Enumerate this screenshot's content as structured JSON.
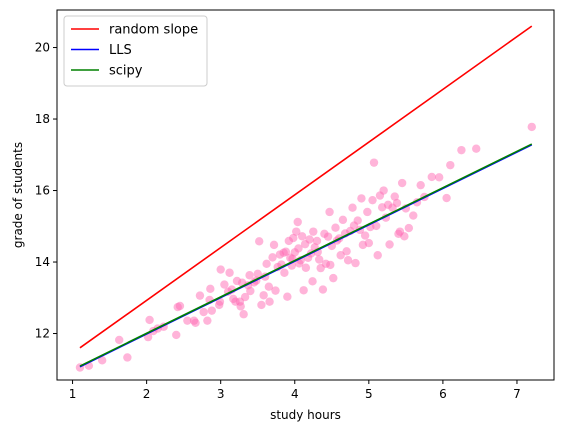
{
  "chart_data": {
    "type": "scatter",
    "title": "",
    "xlabel": "study hours",
    "ylabel": "grade of students",
    "xlim": [
      0.79,
      7.5
    ],
    "ylim": [
      10.7,
      21.05
    ],
    "xticks": [
      1,
      2,
      3,
      4,
      5,
      6,
      7
    ],
    "yticks": [
      12,
      14,
      16,
      18,
      20
    ],
    "grid": false,
    "legend_position": "upper left",
    "colors": {
      "scatter": "#ff69b4",
      "random_slope": "#ff0000",
      "lls": "#0000ff",
      "scipy": "#008000",
      "axes": "#000000",
      "legend_border": "#cccccc"
    },
    "lines": [
      {
        "name": "random slope",
        "color": "#ff0000",
        "x": [
          1.1,
          7.2
        ],
        "y": [
          11.6,
          20.6
        ]
      },
      {
        "name": "LLS",
        "color": "#0000ff",
        "x": [
          1.1,
          7.2
        ],
        "y": [
          11.07,
          17.28
        ]
      },
      {
        "name": "scipy",
        "color": "#008000",
        "x": [
          1.1,
          7.2
        ],
        "y": [
          11.09,
          17.3
        ]
      }
    ],
    "scatter_points": [
      [
        1.1,
        11.05
      ],
      [
        1.22,
        11.1
      ],
      [
        1.4,
        11.25
      ],
      [
        1.63,
        11.82
      ],
      [
        1.74,
        11.33
      ],
      [
        2.02,
        11.9
      ],
      [
        2.04,
        12.38
      ],
      [
        2.09,
        12.07
      ],
      [
        2.15,
        12.14
      ],
      [
        2.23,
        12.19
      ],
      [
        2.4,
        11.96
      ],
      [
        2.42,
        12.74
      ],
      [
        2.45,
        12.77
      ],
      [
        2.55,
        12.36
      ],
      [
        2.64,
        12.36
      ],
      [
        2.66,
        12.3
      ],
      [
        2.72,
        13.06
      ],
      [
        2.77,
        12.6
      ],
      [
        2.82,
        12.36
      ],
      [
        2.85,
        12.94
      ],
      [
        2.86,
        13.25
      ],
      [
        2.88,
        12.64
      ],
      [
        2.98,
        12.8
      ],
      [
        2.99,
        12.89
      ],
      [
        3.0,
        13.79
      ],
      [
        3.05,
        13.37
      ],
      [
        3.1,
        13.17
      ],
      [
        3.12,
        13.7
      ],
      [
        3.15,
        13.23
      ],
      [
        3.17,
        12.97
      ],
      [
        3.2,
        12.89
      ],
      [
        3.22,
        13.47
      ],
      [
        3.26,
        12.89
      ],
      [
        3.27,
        12.76
      ],
      [
        3.29,
        13.42
      ],
      [
        3.31,
        12.54
      ],
      [
        3.33,
        13.02
      ],
      [
        3.37,
        13.35
      ],
      [
        3.39,
        13.63
      ],
      [
        3.4,
        13.19
      ],
      [
        3.45,
        13.43
      ],
      [
        3.48,
        13.48
      ],
      [
        3.5,
        13.67
      ],
      [
        3.52,
        14.58
      ],
      [
        3.55,
        12.8
      ],
      [
        3.58,
        13.07
      ],
      [
        3.6,
        13.59
      ],
      [
        3.62,
        13.95
      ],
      [
        3.65,
        13.31
      ],
      [
        3.66,
        12.89
      ],
      [
        3.7,
        14.13
      ],
      [
        3.72,
        14.48
      ],
      [
        3.74,
        13.2
      ],
      [
        3.77,
        13.86
      ],
      [
        3.8,
        14.21
      ],
      [
        3.82,
        13.93
      ],
      [
        3.85,
        14.26
      ],
      [
        3.86,
        13.7
      ],
      [
        3.88,
        14.29
      ],
      [
        3.9,
        13.03
      ],
      [
        3.92,
        14.59
      ],
      [
        3.94,
        14.12
      ],
      [
        3.96,
        13.9
      ],
      [
        3.97,
        14.09
      ],
      [
        3.98,
        14.67
      ],
      [
        4.0,
        14.27
      ],
      [
        4.02,
        14.85
      ],
      [
        4.04,
        15.12
      ],
      [
        4.05,
        14.38
      ],
      [
        4.06,
        13.96
      ],
      [
        4.08,
        14.05
      ],
      [
        4.1,
        14.72
      ],
      [
        4.12,
        13.21
      ],
      [
        4.14,
        14.5
      ],
      [
        4.15,
        13.84
      ],
      [
        4.18,
        14.12
      ],
      [
        4.2,
        14.63
      ],
      [
        4.22,
        14.24
      ],
      [
        4.24,
        13.46
      ],
      [
        4.25,
        14.85
      ],
      [
        4.27,
        14.41
      ],
      [
        4.3,
        14.59
      ],
      [
        4.31,
        14.28
      ],
      [
        4.33,
        14.07
      ],
      [
        4.35,
        13.83
      ],
      [
        4.38,
        13.23
      ],
      [
        4.4,
        14.79
      ],
      [
        4.42,
        13.95
      ],
      [
        4.45,
        14.71
      ],
      [
        4.47,
        15.4
      ],
      [
        4.48,
        13.92
      ],
      [
        4.5,
        14.45
      ],
      [
        4.52,
        13.55
      ],
      [
        4.55,
        14.96
      ],
      [
        4.57,
        14.6
      ],
      [
        4.6,
        14.66
      ],
      [
        4.62,
        14.19
      ],
      [
        4.65,
        15.18
      ],
      [
        4.68,
        14.8
      ],
      [
        4.7,
        14.3
      ],
      [
        4.72,
        14.05
      ],
      [
        4.75,
        14.87
      ],
      [
        4.78,
        15.52
      ],
      [
        4.8,
        15.02
      ],
      [
        4.82,
        13.97
      ],
      [
        4.85,
        15.16
      ],
      [
        4.88,
        14.9
      ],
      [
        4.9,
        15.78
      ],
      [
        4.92,
        14.48
      ],
      [
        4.95,
        14.74
      ],
      [
        4.98,
        15.4
      ],
      [
        5.0,
        14.53
      ],
      [
        5.02,
        14.98
      ],
      [
        5.05,
        15.73
      ],
      [
        5.07,
        16.78
      ],
      [
        5.1,
        15.01
      ],
      [
        5.12,
        14.19
      ],
      [
        5.15,
        15.86
      ],
      [
        5.18,
        15.53
      ],
      [
        5.2,
        16.0
      ],
      [
        5.23,
        15.24
      ],
      [
        5.26,
        15.6
      ],
      [
        5.28,
        14.49
      ],
      [
        5.32,
        15.52
      ],
      [
        5.35,
        15.83
      ],
      [
        5.38,
        15.65
      ],
      [
        5.4,
        14.79
      ],
      [
        5.42,
        14.85
      ],
      [
        5.45,
        16.21
      ],
      [
        5.48,
        14.72
      ],
      [
        5.5,
        15.5
      ],
      [
        5.54,
        14.95
      ],
      [
        5.6,
        15.3
      ],
      [
        5.65,
        15.67
      ],
      [
        5.7,
        16.15
      ],
      [
        5.75,
        15.82
      ],
      [
        5.85,
        16.38
      ],
      [
        5.95,
        16.37
      ],
      [
        6.05,
        15.79
      ],
      [
        6.1,
        16.71
      ],
      [
        6.25,
        17.13
      ],
      [
        6.45,
        17.17
      ],
      [
        7.2,
        17.78
      ]
    ]
  }
}
